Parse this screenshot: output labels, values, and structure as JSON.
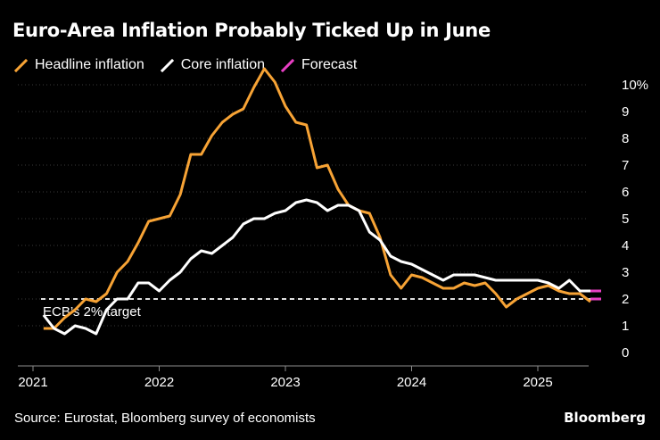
{
  "title": "Euro-Area Inflation Probably Ticked Up in June",
  "source": "Source: Eurostat, Bloomberg survey of economists",
  "brand": "Bloomberg",
  "colors": {
    "background": "#000000",
    "headline": "#f7a335",
    "core": "#ffffff",
    "forecast": "#e83fc4",
    "axis": "#8c8c8c",
    "target": "#ffffff"
  },
  "legend": [
    {
      "label": "Headline inflation",
      "color": "#f7a335"
    },
    {
      "label": "Core inflation",
      "color": "#ffffff"
    },
    {
      "label": "Forecast",
      "color": "#e83fc4"
    }
  ],
  "chart_data": {
    "type": "line",
    "title": "Euro-Area Inflation Probably Ticked Up in June",
    "ylabel": "%",
    "ylim": [
      0,
      10
    ],
    "y_ticks": [
      "10%",
      "9",
      "8",
      "7",
      "6",
      "5",
      "4",
      "3",
      "2",
      "1",
      "0"
    ],
    "x_ticks": [
      "2021",
      "2022",
      "2023",
      "2024",
      "2025"
    ],
    "x_start": "2021-02",
    "annotation": {
      "label": "ECB’s 2% target",
      "value": 2
    },
    "series": [
      {
        "name": "Headline inflation",
        "color": "#f7a335",
        "values": [
          0.9,
          0.9,
          1.3,
          1.6,
          2.0,
          1.9,
          2.2,
          3.0,
          3.4,
          4.1,
          4.9,
          5.0,
          5.1,
          5.9,
          7.4,
          7.4,
          8.1,
          8.6,
          8.9,
          9.1,
          9.9,
          10.6,
          10.1,
          9.2,
          8.6,
          8.5,
          6.9,
          7.0,
          6.1,
          5.5,
          5.3,
          5.2,
          4.3,
          2.9,
          2.4,
          2.9,
          2.8,
          2.6,
          2.4,
          2.4,
          2.6,
          2.5,
          2.6,
          2.2,
          1.7,
          2.0,
          2.2,
          2.4,
          2.5,
          2.3,
          2.2,
          2.2,
          1.9
        ]
      },
      {
        "name": "Core inflation",
        "color": "#ffffff",
        "values": [
          1.4,
          0.9,
          0.7,
          1.0,
          0.9,
          0.7,
          1.6,
          2.0,
          2.0,
          2.6,
          2.6,
          2.3,
          2.7,
          3.0,
          3.5,
          3.8,
          3.7,
          4.0,
          4.3,
          4.8,
          5.0,
          5.0,
          5.2,
          5.3,
          5.6,
          5.7,
          5.6,
          5.3,
          5.5,
          5.5,
          5.3,
          4.5,
          4.2,
          3.6,
          3.4,
          3.3,
          3.1,
          2.9,
          2.7,
          2.9,
          2.9,
          2.9,
          2.8,
          2.7,
          2.7,
          2.7,
          2.7,
          2.7,
          2.6,
          2.4,
          2.7,
          2.3,
          2.3
        ]
      },
      {
        "name": "Forecast headline",
        "color": "#e83fc4",
        "start": "2025-06",
        "values": [
          2.0,
          2.0
        ]
      },
      {
        "name": "Forecast core",
        "color": "#e83fc4",
        "start": "2025-06",
        "values": [
          2.3,
          2.3
        ]
      }
    ]
  }
}
